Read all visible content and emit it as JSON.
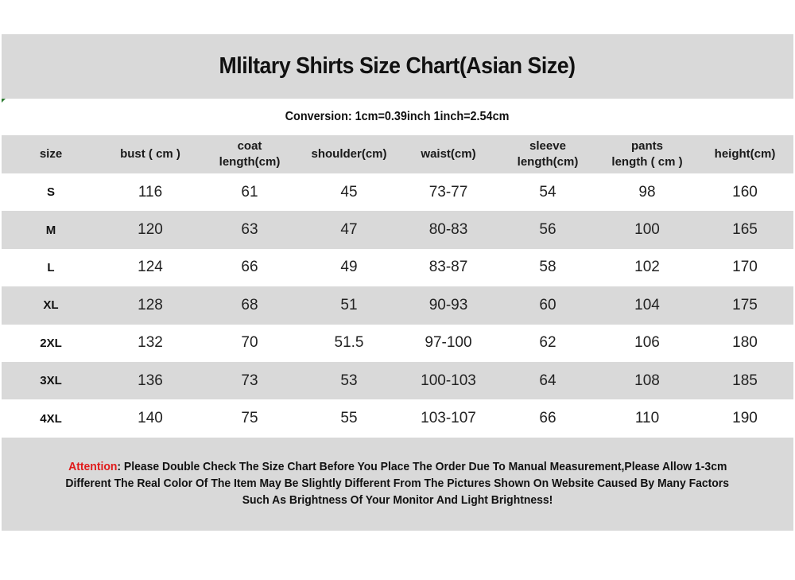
{
  "title": "Mliltary Shirts Size Chart(Asian Size)",
  "conversion": "Conversion: 1cm=0.39inch  1inch=2.54cm",
  "table": {
    "headers": [
      {
        "line1": "size",
        "line2": ""
      },
      {
        "line1": "bust ( cm )",
        "line2": ""
      },
      {
        "line1": "coat",
        "line2": "length(cm)"
      },
      {
        "line1": "shoulder(cm)",
        "line2": ""
      },
      {
        "line1": "waist(cm)",
        "line2": ""
      },
      {
        "line1": "sleeve",
        "line2": "length(cm)"
      },
      {
        "line1": "pants",
        "line2": "length ( cm )"
      },
      {
        "line1": "height(cm)",
        "line2": ""
      }
    ],
    "rows": [
      [
        "S",
        "116",
        "61",
        "45",
        "73-77",
        "54",
        "98",
        "160"
      ],
      [
        "M",
        "120",
        "63",
        "47",
        "80-83",
        "56",
        "100",
        "165"
      ],
      [
        "L",
        "124",
        "66",
        "49",
        "83-87",
        "58",
        "102",
        "170"
      ],
      [
        "XL",
        "128",
        "68",
        "51",
        "90-93",
        "60",
        "104",
        "175"
      ],
      [
        "2XL",
        "132",
        "70",
        "51.5",
        "97-100",
        "62",
        "106",
        "180"
      ],
      [
        "3XL",
        "136",
        "73",
        "53",
        "100-103",
        "64",
        "108",
        "185"
      ],
      [
        "4XL",
        "140",
        "75",
        "55",
        "103-107",
        "66",
        "110",
        "190"
      ]
    ]
  },
  "attention": {
    "label": "Attention",
    "line1": ": Please Double Check The Size Chart Before You Place The Order Due To Manual Measurement,Please Allow 1-3cm",
    "line2": "Different The Real Color Of The Item May Be Slightly Different From The Pictures Shown On Website Caused By Many Factors",
    "line3": "Such As Brightness Of Your Monitor And Light Brightness!",
    "label_color": "#e01b1b"
  },
  "colors": {
    "band_gray": "#d9d9d9",
    "text": "#111111"
  }
}
